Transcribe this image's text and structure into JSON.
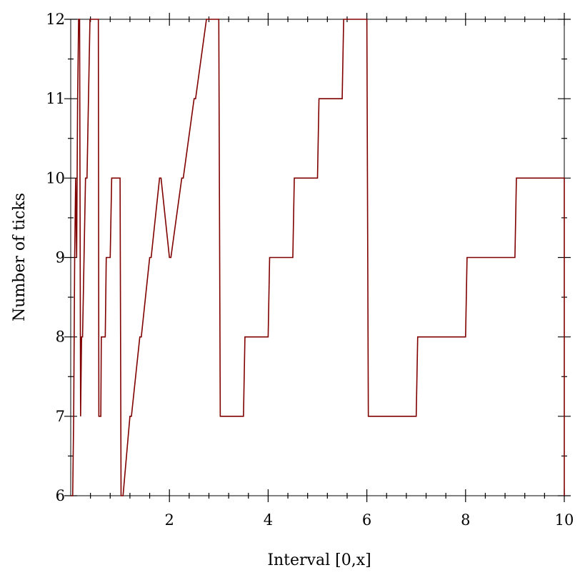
{
  "chart_data": {
    "type": "line",
    "xlabel": "Interval [0,x]",
    "ylabel": "Number of ticks",
    "xlim": [
      0,
      10
    ],
    "ylim": [
      6,
      12
    ],
    "x_ticks": [
      2,
      4,
      6,
      8,
      10
    ],
    "x_minor_ticks": [
      0.4,
      0.8,
      1.2,
      1.6,
      2.4,
      2.8,
      3.2,
      3.6,
      4.4,
      4.8,
      5.2,
      5.6,
      6.4,
      6.8,
      7.2,
      7.6,
      8.4,
      8.8,
      9.2,
      9.6
    ],
    "y_ticks": [
      6,
      7,
      8,
      9,
      10,
      11,
      12
    ],
    "y_minor_ticks": [
      6.5,
      7.5,
      8.5,
      9.5,
      10.5,
      11.5
    ],
    "grid": false,
    "series": [
      {
        "color": "#800000",
        "x": [
          0.0,
          0.04,
          0.06,
          0.08,
          0.1,
          0.12,
          0.14,
          0.16,
          0.18,
          0.2,
          0.22,
          0.24,
          0.27,
          0.3,
          0.33,
          0.36,
          0.39,
          0.42,
          0.45,
          0.48,
          0.51,
          0.54,
          0.56,
          0.57,
          0.61,
          0.62,
          0.7,
          0.72,
          0.8,
          0.83,
          0.9,
          0.93,
          1.0,
          1.02,
          1.06,
          1.2,
          1.23,
          1.4,
          1.43,
          1.6,
          1.63,
          1.8,
          1.83,
          2.0,
          2.03,
          2.25,
          2.28,
          2.5,
          2.53,
          2.75,
          2.78,
          3.0,
          3.03,
          3.5,
          3.53,
          4.0,
          4.03,
          4.5,
          4.53,
          5.0,
          5.03,
          5.5,
          5.53,
          6.0,
          6.03,
          7.0,
          7.03,
          8.0,
          8.03,
          9.0,
          9.03,
          10.0,
          10.0
        ],
        "values": [
          6,
          6,
          7,
          9,
          10,
          9,
          11,
          12,
          12,
          7,
          8,
          8,
          9,
          10,
          10,
          11,
          12,
          12,
          12,
          12,
          12,
          12,
          12,
          7,
          7,
          8,
          8,
          9,
          9,
          10,
          10,
          10,
          10,
          6,
          6,
          7,
          7,
          8,
          8,
          9,
          9,
          10,
          10,
          9,
          9,
          10,
          10,
          11,
          11,
          12,
          12,
          12,
          7,
          7,
          8,
          8,
          9,
          9,
          10,
          10,
          11,
          11,
          12,
          12,
          7,
          7,
          8,
          8,
          9,
          9,
          10,
          10,
          6
        ]
      }
    ]
  }
}
